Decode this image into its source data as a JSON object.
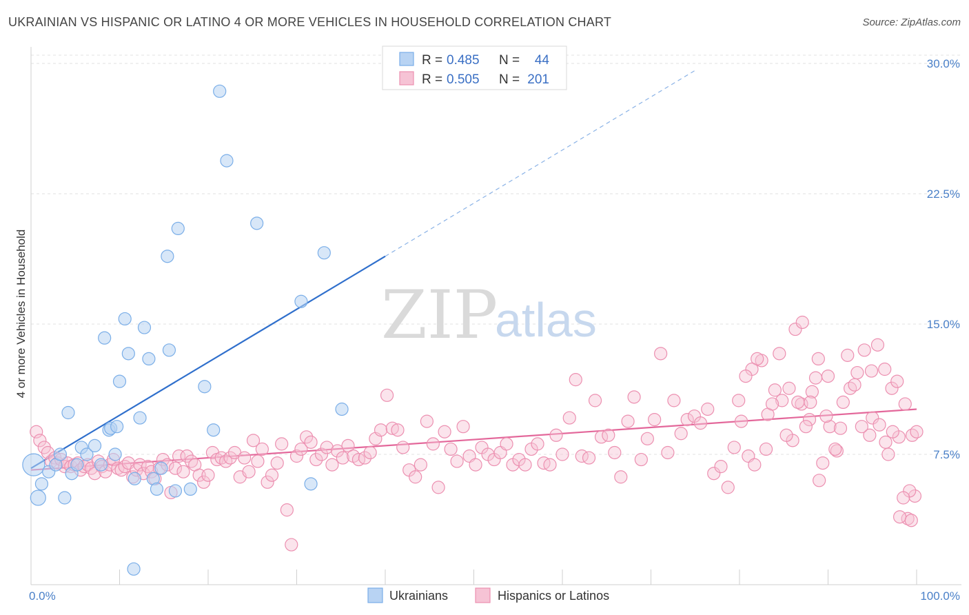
{
  "title": "UKRAINIAN VS HISPANIC OR LATINO 4 OR MORE VEHICLES IN HOUSEHOLD CORRELATION CHART",
  "source": "Source: ZipAtlas.com",
  "watermark": {
    "zip": "ZIP",
    "atlas": "atlas"
  },
  "colors": {
    "blue": "#7aaee8",
    "blue_fill": "#b8d3f3",
    "blue_line": "#2f6fcc",
    "pink": "#ec8fb0",
    "pink_fill": "#f6c3d5",
    "pink_line": "#e3679a",
    "tick_text": "#4a80c8"
  },
  "legend": {
    "rows": [
      {
        "r_label": "R =",
        "r_value": "0.485",
        "n_label": "N =",
        "n_value": "44"
      },
      {
        "r_label": "R =",
        "r_value": "0.505",
        "n_label": "N =",
        "n_value": "201"
      }
    ],
    "bottom": [
      "Ukrainians",
      "Hispanics or Latinos"
    ]
  },
  "chart_data": {
    "type": "scatter",
    "title": "UKRAINIAN VS HISPANIC OR LATINO 4 OR MORE VEHICLES IN HOUSEHOLD CORRELATION CHART",
    "xlabel": "",
    "ylabel": "4 or more Vehicles in Household",
    "xlim": [
      0,
      100
    ],
    "ylim": [
      0,
      30
    ],
    "x_tick_labels": [
      "0.0%",
      "100.0%"
    ],
    "y_ticks": [
      7.5,
      15.0,
      22.5,
      30.0
    ],
    "y_tick_labels": [
      "7.5%",
      "15.0%",
      "22.5%",
      "30.0%"
    ],
    "grid": true,
    "legend_position": "top-center",
    "series": [
      {
        "name": "Ukrainians",
        "trend": {
          "x0": 0,
          "y0": 6.7,
          "x1": 40,
          "y1": 18.9,
          "dash_to_x": 75,
          "dash_to_y": 29.6
        },
        "points": [
          [
            0.3,
            6.9,
            16
          ],
          [
            0.8,
            5.0,
            11
          ],
          [
            1.2,
            5.8,
            9
          ],
          [
            2.0,
            6.5,
            9
          ],
          [
            2.8,
            6.9,
            9
          ],
          [
            3.3,
            7.5,
            9
          ],
          [
            4.2,
            9.9,
            9
          ],
          [
            4.6,
            6.4,
            9
          ],
          [
            5.2,
            6.9,
            9
          ],
          [
            5.7,
            7.9,
            9
          ],
          [
            6.3,
            7.5,
            9
          ],
          [
            7.2,
            8.0,
            9
          ],
          [
            7.9,
            6.9,
            9
          ],
          [
            8.3,
            14.2,
            9
          ],
          [
            8.8,
            8.9,
            9
          ],
          [
            9.0,
            9.0,
            9
          ],
          [
            9.5,
            7.5,
            9
          ],
          [
            10.0,
            11.7,
            9
          ],
          [
            10.6,
            15.3,
            9
          ],
          [
            11.0,
            13.3,
            9
          ],
          [
            11.7,
            6.1,
            9
          ],
          [
            12.3,
            9.6,
            9
          ],
          [
            12.8,
            14.8,
            9
          ],
          [
            13.3,
            13.0,
            9
          ],
          [
            13.8,
            6.1,
            9
          ],
          [
            14.2,
            5.5,
            9
          ],
          [
            14.7,
            6.7,
            9
          ],
          [
            15.4,
            18.9,
            9
          ],
          [
            15.6,
            13.5,
            9
          ],
          [
            16.3,
            5.4,
            9
          ],
          [
            16.6,
            20.5,
            9
          ],
          [
            18.0,
            5.5,
            9
          ],
          [
            19.6,
            11.4,
            9
          ],
          [
            20.6,
            8.9,
            9
          ],
          [
            21.3,
            28.4,
            9
          ],
          [
            22.1,
            24.4,
            9
          ],
          [
            25.5,
            20.8,
            9
          ],
          [
            30.5,
            16.3,
            9
          ],
          [
            31.6,
            5.8,
            9
          ],
          [
            33.1,
            19.1,
            9
          ],
          [
            35.1,
            10.1,
            9
          ],
          [
            11.6,
            0.9,
            9
          ],
          [
            3.8,
            5.0,
            9
          ],
          [
            9.7,
            9.1,
            9
          ]
        ]
      },
      {
        "name": "Hispanics or Latinos",
        "trend": {
          "x0": 0,
          "y0": 6.6,
          "x1": 100,
          "y1": 10.1
        },
        "points": [
          [
            0.6,
            8.8
          ],
          [
            1.0,
            8.3
          ],
          [
            1.5,
            7.9
          ],
          [
            1.9,
            7.6
          ],
          [
            2.3,
            7.1
          ],
          [
            2.7,
            7.3
          ],
          [
            3.0,
            7.0
          ],
          [
            3.4,
            7.2
          ],
          [
            3.8,
            6.8
          ],
          [
            4.1,
            7.0
          ],
          [
            4.5,
            6.8
          ],
          [
            4.9,
            6.9
          ],
          [
            5.3,
            7.0
          ],
          [
            5.6,
            6.6
          ],
          [
            6.0,
            6.8
          ],
          [
            6.4,
            6.9
          ],
          [
            6.8,
            6.7
          ],
          [
            7.2,
            6.4
          ],
          [
            7.6,
            7.1
          ],
          [
            8.0,
            6.8
          ],
          [
            8.4,
            6.5
          ],
          [
            8.9,
            6.9
          ],
          [
            9.3,
            7.2
          ],
          [
            9.8,
            6.7
          ],
          [
            10.2,
            6.6
          ],
          [
            10.6,
            6.8
          ],
          [
            11.0,
            7.0
          ],
          [
            11.5,
            6.2
          ],
          [
            11.9,
            6.6
          ],
          [
            12.3,
            6.9
          ],
          [
            12.7,
            6.4
          ],
          [
            13.2,
            6.8
          ],
          [
            13.6,
            6.5
          ],
          [
            14.0,
            6.1
          ],
          [
            14.5,
            6.7
          ],
          [
            14.9,
            7.2
          ],
          [
            15.4,
            6.9
          ],
          [
            15.8,
            5.3
          ],
          [
            16.3,
            6.7
          ],
          [
            16.7,
            7.4
          ],
          [
            17.2,
            6.5
          ],
          [
            17.6,
            7.4
          ],
          [
            18.1,
            7.1
          ],
          [
            18.5,
            6.9
          ],
          [
            19.0,
            6.3
          ],
          [
            19.5,
            5.9
          ],
          [
            20.0,
            6.3
          ],
          [
            20.5,
            7.6
          ],
          [
            21.0,
            7.2
          ],
          [
            21.5,
            7.3
          ],
          [
            22.0,
            7.1
          ],
          [
            22.5,
            7.3
          ],
          [
            23.0,
            7.6
          ],
          [
            23.6,
            6.2
          ],
          [
            24.1,
            7.3
          ],
          [
            24.6,
            6.5
          ],
          [
            25.1,
            8.3
          ],
          [
            25.6,
            7.1
          ],
          [
            26.1,
            7.8
          ],
          [
            26.7,
            5.9
          ],
          [
            27.2,
            6.3
          ],
          [
            27.8,
            7.0
          ],
          [
            28.3,
            8.1
          ],
          [
            28.9,
            4.3
          ],
          [
            29.4,
            2.3
          ],
          [
            30.0,
            7.4
          ],
          [
            30.5,
            7.8
          ],
          [
            31.1,
            8.5
          ],
          [
            31.6,
            8.2
          ],
          [
            32.2,
            7.2
          ],
          [
            32.8,
            7.5
          ],
          [
            33.4,
            7.9
          ],
          [
            34.0,
            6.9
          ],
          [
            34.6,
            7.7
          ],
          [
            35.2,
            7.3
          ],
          [
            35.8,
            8.0
          ],
          [
            36.4,
            7.4
          ],
          [
            37.0,
            7.2
          ],
          [
            37.7,
            7.3
          ],
          [
            38.3,
            7.6
          ],
          [
            38.9,
            8.4
          ],
          [
            39.5,
            8.9
          ],
          [
            40.2,
            10.9
          ],
          [
            40.8,
            9.0
          ],
          [
            41.4,
            8.9
          ],
          [
            42.0,
            7.9
          ],
          [
            42.7,
            6.6
          ],
          [
            43.4,
            6.2
          ],
          [
            44.0,
            6.9
          ],
          [
            44.7,
            9.4
          ],
          [
            45.4,
            8.1
          ],
          [
            46.0,
            5.6
          ],
          [
            46.7,
            8.8
          ],
          [
            47.4,
            7.8
          ],
          [
            48.1,
            7.1
          ],
          [
            48.8,
            9.1
          ],
          [
            49.5,
            7.4
          ],
          [
            50.2,
            6.9
          ],
          [
            50.9,
            7.9
          ],
          [
            51.6,
            7.5
          ],
          [
            52.3,
            7.2
          ],
          [
            53.0,
            7.6
          ],
          [
            53.7,
            8.1
          ],
          [
            54.4,
            6.9
          ],
          [
            55.1,
            7.2
          ],
          [
            55.8,
            6.9
          ],
          [
            56.5,
            7.8
          ],
          [
            57.2,
            8.1
          ],
          [
            57.9,
            7.0
          ],
          [
            58.6,
            6.9
          ],
          [
            59.3,
            8.6
          ],
          [
            60.0,
            7.5
          ],
          [
            60.8,
            9.6
          ],
          [
            61.5,
            11.8
          ],
          [
            62.2,
            7.4
          ],
          [
            63.0,
            7.3
          ],
          [
            63.7,
            10.6
          ],
          [
            64.4,
            8.5
          ],
          [
            65.2,
            8.6
          ],
          [
            65.9,
            7.6
          ],
          [
            66.6,
            6.2
          ],
          [
            67.4,
            9.4
          ],
          [
            68.1,
            10.8
          ],
          [
            68.9,
            7.2
          ],
          [
            69.6,
            8.4
          ],
          [
            70.4,
            9.5
          ],
          [
            71.1,
            13.3
          ],
          [
            71.9,
            7.6
          ],
          [
            72.6,
            10.6
          ],
          [
            73.4,
            8.7
          ],
          [
            74.1,
            9.5
          ],
          [
            74.9,
            9.7
          ],
          [
            75.6,
            9.3
          ],
          [
            76.4,
            10.1
          ],
          [
            77.1,
            6.4
          ],
          [
            77.9,
            6.8
          ],
          [
            78.7,
            5.6
          ],
          [
            79.4,
            7.9
          ],
          [
            80.2,
            9.4
          ],
          [
            81.0,
            7.4
          ],
          [
            81.7,
            6.9
          ],
          [
            82.5,
            12.9
          ],
          [
            83.2,
            9.8
          ],
          [
            84.0,
            11.2
          ],
          [
            84.8,
            10.6
          ],
          [
            85.6,
            11.3
          ],
          [
            86.3,
            14.7
          ],
          [
            87.1,
            15.1
          ],
          [
            87.9,
            9.5
          ],
          [
            88.6,
            11.9
          ],
          [
            89.4,
            7.0
          ],
          [
            90.2,
            9.1
          ],
          [
            91.0,
            7.7
          ],
          [
            91.7,
            10.5
          ],
          [
            92.5,
            11.3
          ],
          [
            93.3,
            12.2
          ],
          [
            94.1,
            13.5
          ],
          [
            94.9,
            12.3
          ],
          [
            95.6,
            13.8
          ],
          [
            96.4,
            12.4
          ],
          [
            97.2,
            11.3
          ],
          [
            98.0,
            8.5
          ],
          [
            98.7,
            10.4
          ],
          [
            99.5,
            8.6
          ],
          [
            87.0,
            10.4
          ],
          [
            88.2,
            11.1
          ],
          [
            90.0,
            12.0
          ],
          [
            86.0,
            8.3
          ],
          [
            89.0,
            6.0
          ],
          [
            95.0,
            9.6
          ],
          [
            100.0,
            8.8
          ],
          [
            99.8,
            5.1
          ],
          [
            99.2,
            5.4
          ],
          [
            99.0,
            3.8
          ],
          [
            98.5,
            5.0
          ],
          [
            97.8,
            11.7
          ],
          [
            97.3,
            8.8
          ],
          [
            96.5,
            8.2
          ],
          [
            96.8,
            7.5
          ],
          [
            95.8,
            9.2
          ],
          [
            94.7,
            8.6
          ],
          [
            93.8,
            9.1
          ],
          [
            93.0,
            11.5
          ],
          [
            92.2,
            13.2
          ],
          [
            91.4,
            9.0
          ],
          [
            90.8,
            7.8
          ],
          [
            89.8,
            9.7
          ],
          [
            88.9,
            13.0
          ],
          [
            88.0,
            10.5
          ],
          [
            87.5,
            9.1
          ],
          [
            86.6,
            10.5
          ],
          [
            85.3,
            8.6
          ],
          [
            84.5,
            13.3
          ],
          [
            83.7,
            10.4
          ],
          [
            83.0,
            7.8
          ],
          [
            82.0,
            13.0
          ],
          [
            81.4,
            12.4
          ],
          [
            80.7,
            12.0
          ],
          [
            79.9,
            10.6
          ],
          [
            98.1,
            3.9
          ],
          [
            99.4,
            3.7
          ]
        ]
      }
    ]
  }
}
